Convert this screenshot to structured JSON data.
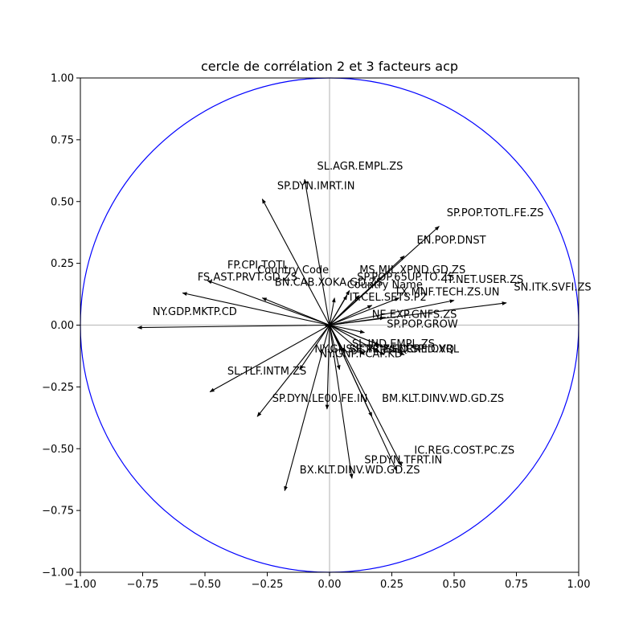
{
  "chart_data": {
    "type": "scatter",
    "title": "cercle de corrélation 2 et 3 facteurs acp",
    "xlabel": "",
    "ylabel": "",
    "xlim": [
      -1.0,
      1.0
    ],
    "ylim": [
      -1.0,
      1.0
    ],
    "xticks": [
      "−1.00",
      "−0.75",
      "−0.50",
      "−0.25",
      "0.00",
      "0.25",
      "0.50",
      "0.75",
      "1.00"
    ],
    "yticks": [
      "−1.00",
      "−0.75",
      "−0.50",
      "−0.25",
      "0.00",
      "0.25",
      "0.50",
      "0.75",
      "1.00"
    ],
    "circle_color": "#0000ff",
    "axis_line_color": "#bfbfbf",
    "arrows": [
      {
        "label": "SL.AGR.EMPL.ZS",
        "x": -0.1,
        "y": 0.59,
        "lx": -0.05,
        "ly": 0.63
      },
      {
        "label": "SP.DYN.IMRT.IN",
        "x": -0.27,
        "y": 0.51,
        "lx": -0.21,
        "ly": 0.55
      },
      {
        "label": "SP.POP.TOTL.FE.ZS",
        "x": 0.44,
        "y": 0.4,
        "lx": 0.47,
        "ly": 0.44
      },
      {
        "label": "EN.POP.DNST",
        "x": 0.3,
        "y": 0.28,
        "lx": 0.35,
        "ly": 0.33
      },
      {
        "label": "FP.CPI.TOTL",
        "x": -0.27,
        "y": 0.11,
        "lx": -0.41,
        "ly": 0.23
      },
      {
        "label": "Country Code",
        "x": 0.0,
        "y": 0.0,
        "lx": -0.29,
        "ly": 0.21
      },
      {
        "label": "MS.MIL.XPND.GD.ZS",
        "x": 0.08,
        "y": 0.14,
        "lx": 0.12,
        "ly": 0.21
      },
      {
        "label": "FS.AST.PRVT.GD.ZS",
        "x": -0.49,
        "y": 0.18,
        "lx": -0.53,
        "ly": 0.18
      },
      {
        "label": "SP.POP.65UP.TO.ZS",
        "x": 0.12,
        "y": 0.12,
        "lx": 0.11,
        "ly": 0.18
      },
      {
        "label": "IT.NET.USER.ZS",
        "x": 0.5,
        "y": 0.1,
        "lx": 0.46,
        "ly": 0.17
      },
      {
        "label": "BN.CAB.XOKA.GD.ZS",
        "x": 0.02,
        "y": 0.11,
        "lx": -0.22,
        "ly": 0.16
      },
      {
        "label": "Country Name",
        "x": 0.07,
        "y": 0.12,
        "lx": 0.07,
        "ly": 0.15
      },
      {
        "label": "TX.MNF.TECH.ZS.UN",
        "x": 0.28,
        "y": 0.11,
        "lx": 0.26,
        "ly": 0.12
      },
      {
        "label": "SN.ITK.SVFI.ZS",
        "x": 0.71,
        "y": 0.09,
        "lx": 0.74,
        "ly": 0.14
      },
      {
        "label": "IT.CEL.SETS.P2",
        "x": 0.17,
        "y": 0.08,
        "lx": 0.08,
        "ly": 0.1
      },
      {
        "label": "NY.GDP.MKTP.CD",
        "x": -0.59,
        "y": 0.13,
        "lx": -0.71,
        "ly": 0.04
      },
      {
        "label": "NE.EXP.GNFS.ZS",
        "x": 0.22,
        "y": 0.03,
        "lx": 0.17,
        "ly": 0.03
      },
      {
        "label": "SP.POP.GROW",
        "x": 0.14,
        "y": -0.03,
        "lx": 0.23,
        "ly": -0.01
      },
      {
        "label": "",
        "x": -0.77,
        "y": -0.01,
        "lx": 0,
        "ly": 0
      },
      {
        "label": "SL.IND.EMPL.ZS",
        "x": 0.2,
        "y": -0.08,
        "lx": 0.09,
        "ly": -0.09
      },
      {
        "label": "NY.GNS.ICTR.ZS",
        "x": 0.06,
        "y": -0.11,
        "lx": -0.06,
        "ly": -0.11
      },
      {
        "label": "SE.PRM.ENRR",
        "x": 0.14,
        "y": -0.12,
        "lx": 0.08,
        "ly": -0.11
      },
      {
        "label": "IC.LGL.CRED.XQ",
        "x": 0.22,
        "y": -0.12,
        "lx": 0.16,
        "ly": -0.11
      },
      {
        "label": "IQ.SPI.OVRL",
        "x": 0.3,
        "y": -0.12,
        "lx": 0.27,
        "ly": -0.11
      },
      {
        "label": "NY.GNP.PCAP.KD",
        "x": 0.04,
        "y": -0.18,
        "lx": -0.04,
        "ly": -0.13
      },
      {
        "label": "SL.TLF.INTM.ZS",
        "x": -0.48,
        "y": -0.27,
        "lx": -0.41,
        "ly": -0.2
      },
      {
        "label": "SP.DYN.LE00.FE.IN",
        "x": -0.29,
        "y": -0.37,
        "lx": -0.23,
        "ly": -0.31
      },
      {
        "label": "BM.KLT.DINV.WD.GD.ZS",
        "x": 0.17,
        "y": -0.37,
        "lx": 0.21,
        "ly": -0.31
      },
      {
        "label": "IC.REG.COST.PC.ZS",
        "x": 0.29,
        "y": -0.57,
        "lx": 0.34,
        "ly": -0.52
      },
      {
        "label": "SP.DYN.TFRT.IN",
        "x": 0.27,
        "y": -0.59,
        "lx": 0.14,
        "ly": -0.56
      },
      {
        "label": "BX.KLT.DINV.WD.GD.ZS",
        "x": 0.09,
        "y": -0.62,
        "lx": -0.12,
        "ly": -0.6
      },
      {
        "label": "",
        "x": -0.18,
        "y": -0.67,
        "lx": 0,
        "ly": 0
      },
      {
        "label": "",
        "x": -0.12,
        "y": -0.18,
        "lx": 0,
        "ly": 0
      },
      {
        "label": "",
        "x": -0.01,
        "y": -0.34,
        "lx": 0,
        "ly": 0
      }
    ]
  }
}
